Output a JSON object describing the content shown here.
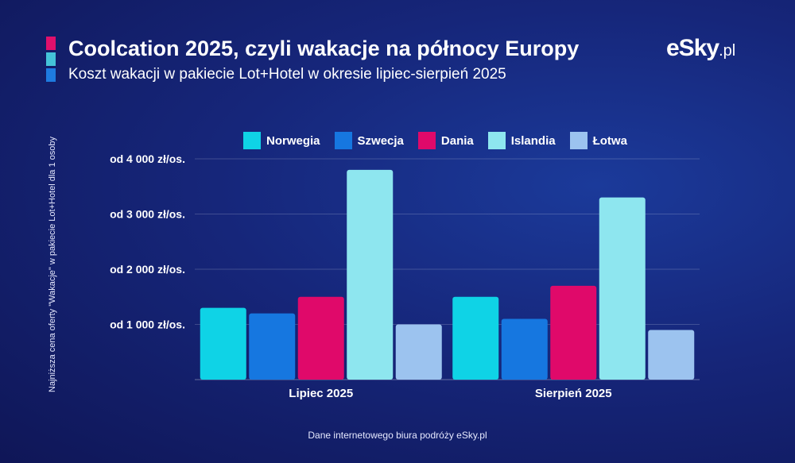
{
  "header": {
    "title": "Coolcation 2025, czyli wakacje na północy Europy",
    "subtitle": "Koszt wakacji w pakiecie Lot+Hotel w okresie lipiec-sierpień 2025",
    "accent_colors": [
      "#e0106c",
      "#44c3d8",
      "#1e7be0"
    ]
  },
  "logo": {
    "main": "eSky",
    "suffix": ".pl"
  },
  "footer": {
    "source": "Dane internetowego biura podróży eSky.pl"
  },
  "chart_data": {
    "type": "bar",
    "ylabel": "Najniższa cena oferty \"Wakacje\" w pakiecie Lot+Hotel dla 1 osoby",
    "categories": [
      "Lipiec 2025",
      "Sierpień 2025"
    ],
    "series": [
      {
        "name": "Norwegia",
        "color": "#0fd3e6",
        "values": [
          1300,
          1500
        ]
      },
      {
        "name": "Szwecja",
        "color": "#1677e0",
        "values": [
          1200,
          1100
        ]
      },
      {
        "name": "Dania",
        "color": "#e0096a",
        "values": [
          1500,
          1700
        ]
      },
      {
        "name": "Islandia",
        "color": "#8ee6ef",
        "values": [
          3800,
          3300
        ]
      },
      {
        "name": "Łotwa",
        "color": "#9cc3ef",
        "values": [
          1000,
          900
        ]
      }
    ],
    "ylim": [
      0,
      4000
    ],
    "yticks": [
      {
        "value": 1000,
        "label": "od 1 000 zł/os."
      },
      {
        "value": 2000,
        "label": "od 2 000 zł/os."
      },
      {
        "value": 3000,
        "label": "od 3 000 zł/os."
      },
      {
        "value": 4000,
        "label": "od 4 000 zł/os."
      }
    ],
    "grid": true,
    "legend_position": "top"
  }
}
